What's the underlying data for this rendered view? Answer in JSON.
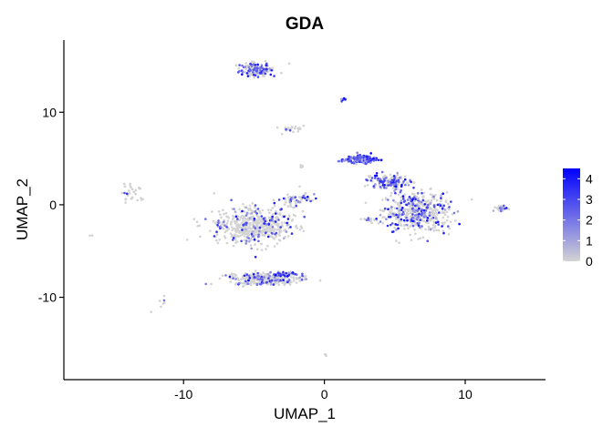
{
  "chart_data": {
    "type": "scatter",
    "title": "GDA",
    "xlabel": "UMAP_1",
    "ylabel": "UMAP_2",
    "xlim": [
      -18.5,
      15.7
    ],
    "ylim": [
      -18.9,
      17.8
    ],
    "xticks": [
      {
        "value": -10,
        "label": "-10"
      },
      {
        "value": 0,
        "label": "0"
      },
      {
        "value": 10,
        "label": "10"
      }
    ],
    "yticks": [
      {
        "value": -10,
        "label": "-10"
      },
      {
        "value": 0,
        "label": "0"
      },
      {
        "value": 10,
        "label": "10"
      }
    ],
    "grid": false,
    "legend": {
      "placement": "right",
      "type": "colorbar",
      "min": 0,
      "max": 4.5,
      "low_color": "#d3d3d3",
      "high_color": "#0000ff",
      "ticks": [
        {
          "value": 0,
          "label": "0"
        },
        {
          "value": 1,
          "label": "1"
        },
        {
          "value": 2,
          "label": "2"
        },
        {
          "value": 3,
          "label": "3"
        },
        {
          "value": 4,
          "label": "4"
        }
      ]
    },
    "clusters": [
      {
        "cx": -4.8,
        "cy": 14.6,
        "sx": 1.1,
        "sy": 0.6,
        "n": 180,
        "expr": 0.35
      },
      {
        "cx": 1.3,
        "cy": 11.4,
        "sx": 0.2,
        "sy": 0.2,
        "n": 14,
        "expr": 0.2
      },
      {
        "cx": -2.5,
        "cy": 8.2,
        "sx": 0.9,
        "sy": 0.3,
        "n": 22,
        "expr": 0.05
      },
      {
        "cx": -1.7,
        "cy": 4.2,
        "sx": 0.2,
        "sy": 0.15,
        "n": 6,
        "expr": 0.1
      },
      {
        "cx": 2.6,
        "cy": 4.9,
        "sx": 1.1,
        "sy": 0.4,
        "n": 160,
        "expr": 0.8
      },
      {
        "cx": 4.4,
        "cy": 2.5,
        "sx": 1.3,
        "sy": 0.7,
        "n": 150,
        "expr": 0.55
      },
      {
        "cx": 6.6,
        "cy": -0.8,
        "sx": 2.0,
        "sy": 2.0,
        "n": 520,
        "expr": 0.3
      },
      {
        "cx": 3.2,
        "cy": -1.6,
        "sx": 0.6,
        "sy": 0.2,
        "n": 14,
        "expr": 0.3
      },
      {
        "cx": 12.7,
        "cy": -0.4,
        "sx": 0.5,
        "sy": 0.3,
        "n": 26,
        "expr": 0.3
      },
      {
        "cx": -5.0,
        "cy": -2.3,
        "sx": 2.6,
        "sy": 1.8,
        "n": 560,
        "expr": 0.15
      },
      {
        "cx": -2.0,
        "cy": 0.6,
        "sx": 1.2,
        "sy": 0.7,
        "n": 60,
        "expr": 0.45
      },
      {
        "cx": -4.3,
        "cy": -8.0,
        "sx": 2.2,
        "sy": 0.6,
        "n": 320,
        "expr": 0.2
      },
      {
        "cx": -2.7,
        "cy": -7.5,
        "sx": 0.9,
        "sy": 0.25,
        "n": 40,
        "expr": 0.65
      },
      {
        "cx": -13.6,
        "cy": 1.4,
        "sx": 0.7,
        "sy": 0.9,
        "n": 30,
        "expr": 0.1
      },
      {
        "cx": -11.5,
        "cy": -10.6,
        "sx": 0.3,
        "sy": 0.5,
        "n": 6,
        "expr": 0.05
      },
      {
        "cx": -16.6,
        "cy": -3.3,
        "sx": 0.1,
        "sy": 0.1,
        "n": 2,
        "expr": 0.0
      },
      {
        "cx": 0.0,
        "cy": -16.2,
        "sx": 0.2,
        "sy": 0.2,
        "n": 4,
        "expr": 0.0
      },
      {
        "cx": -12.3,
        "cy": -11.6,
        "sx": 0.05,
        "sy": 0.05,
        "n": 1,
        "expr": 0.2
      }
    ]
  }
}
